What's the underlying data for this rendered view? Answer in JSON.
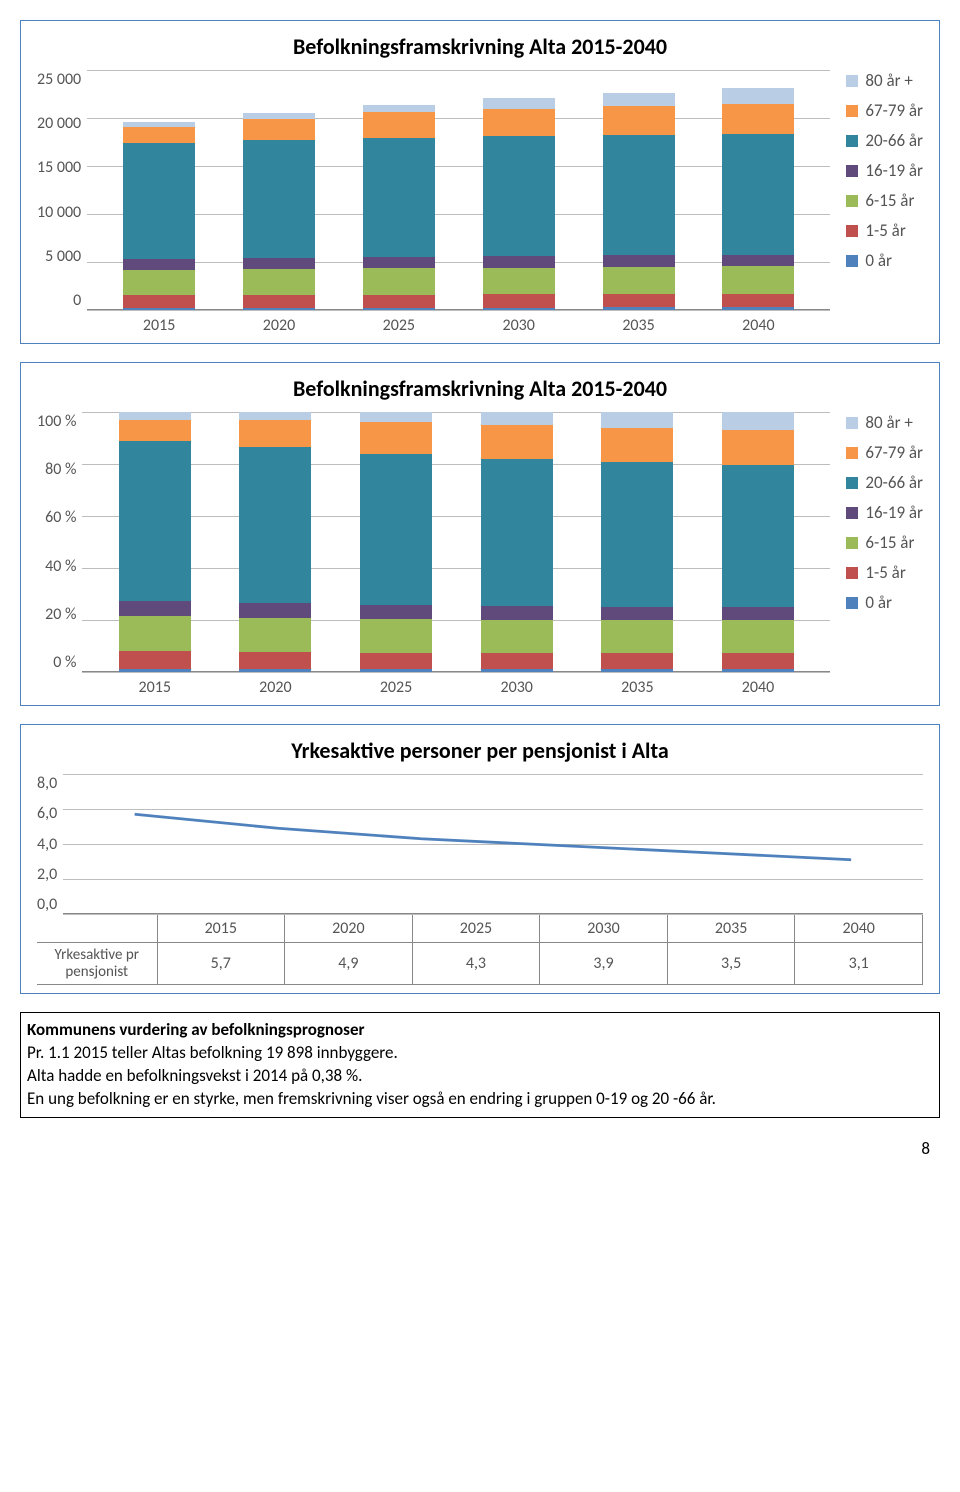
{
  "colors": {
    "border": "#4f81bd",
    "grid": "#bdbdbd",
    "series": {
      "80+": "#b9cde5",
      "67-79": "#f79646",
      "20-66": "#31859c",
      "16-19": "#604a7b",
      "6-15": "#9bbb59",
      "1-5": "#c0504d",
      "0": "#4f81bd"
    },
    "line": "#4f81bd"
  },
  "series_order": [
    "0",
    "1-5",
    "6-15",
    "16-19",
    "20-66",
    "67-79",
    "80+"
  ],
  "legend_labels": {
    "80+": "80 år +",
    "67-79": "67-79 år",
    "20-66": "20-66 år",
    "16-19": "16-19 år",
    "6-15": "6-15 år",
    "1-5": "1-5 år",
    "0": "0 år"
  },
  "chart1": {
    "title": "Befolkningsframskrivning Alta 2015-2040",
    "ylabels": [
      "25 000",
      "20 000",
      "15 000",
      "10 000",
      "5 000",
      "0"
    ],
    "ymax": 25000,
    "categories": [
      "2015",
      "2020",
      "2025",
      "2030",
      "2035",
      "2040"
    ],
    "data": {
      "2015": {
        "0": 250,
        "1-5": 1300,
        "6-15": 2650,
        "16-19": 1130,
        "20-66": 12100,
        "67-79": 1600,
        "80+": 600
      },
      "2020": {
        "0": 250,
        "1-5": 1320,
        "6-15": 2700,
        "16-19": 1140,
        "20-66": 12350,
        "67-79": 2100,
        "80+": 650
      },
      "2025": {
        "0": 260,
        "1-5": 1350,
        "6-15": 2750,
        "16-19": 1150,
        "20-66": 12400,
        "67-79": 2700,
        "80+": 800
      },
      "2030": {
        "0": 260,
        "1-5": 1370,
        "6-15": 2800,
        "16-19": 1160,
        "20-66": 12500,
        "67-79": 2900,
        "80+": 1050
      },
      "2035": {
        "0": 270,
        "1-5": 1400,
        "6-15": 2850,
        "16-19": 1170,
        "20-66": 12550,
        "67-79": 3000,
        "80+": 1350
      },
      "2040": {
        "0": 270,
        "1-5": 1420,
        "6-15": 2900,
        "16-19": 1180,
        "20-66": 12600,
        "67-79": 3100,
        "80+": 1650
      }
    }
  },
  "chart2": {
    "title": "Befolkningsframskrivning Alta 2015-2040",
    "ylabels": [
      "100 %",
      "80 %",
      "60 %",
      "40 %",
      "20 %",
      "0 %"
    ],
    "categories": [
      "2015",
      "2020",
      "2025",
      "2030",
      "2035",
      "2040"
    ],
    "data": {
      "2015": {
        "0": 1.3,
        "1-5": 6.6,
        "6-15": 13.5,
        "16-19": 5.8,
        "20-66": 61.6,
        "67-79": 8.1,
        "80+": 3.1
      },
      "2020": {
        "0": 1.2,
        "1-5": 6.4,
        "6-15": 13.2,
        "16-19": 5.6,
        "20-66": 60.2,
        "67-79": 10.2,
        "80+": 3.2
      },
      "2025": {
        "0": 1.2,
        "1-5": 6.3,
        "6-15": 12.9,
        "16-19": 5.4,
        "20-66": 58.2,
        "67-79": 12.3,
        "80+": 3.7
      },
      "2030": {
        "0": 1.2,
        "1-5": 6.2,
        "6-15": 12.7,
        "16-19": 5.3,
        "20-66": 56.7,
        "67-79": 13.1,
        "80+": 4.8
      },
      "2035": {
        "0": 1.2,
        "1-5": 6.2,
        "6-15": 12.6,
        "16-19": 5.2,
        "20-66": 55.5,
        "67-79": 13.3,
        "80+": 6.0
      },
      "2040": {
        "0": 1.2,
        "1-5": 6.1,
        "6-15": 12.6,
        "16-19": 5.1,
        "20-66": 54.6,
        "67-79": 13.4,
        "80+": 7.0
      }
    }
  },
  "chart3": {
    "title": "Yrkesaktive personer per pensjonist i Alta",
    "ylabels": [
      "8,0",
      "6,0",
      "4,0",
      "2,0",
      "0,0"
    ],
    "ymax": 8.0,
    "row_label": "Yrkesaktive pr pensjonist",
    "categories": [
      "2015",
      "2020",
      "2025",
      "2030",
      "2035",
      "2040"
    ],
    "values_display": [
      "5,7",
      "4,9",
      "4,3",
      "3,9",
      "3,5",
      "3,1"
    ],
    "values": [
      5.7,
      4.9,
      4.3,
      3.9,
      3.5,
      3.1
    ]
  },
  "textbox": {
    "heading": "Kommunens vurdering av befolkningsprognoser",
    "lines": [
      "Pr. 1.1 2015 teller Altas befolkning 19 898 innbyggere.",
      "Alta hadde en befolkningsvekst i 2014 på 0,38 %.",
      "En ung befolkning er en styrke, men fremskrivning viser også en endring i gruppen 0-19 og 20 -66 år."
    ]
  },
  "page_number": "8"
}
